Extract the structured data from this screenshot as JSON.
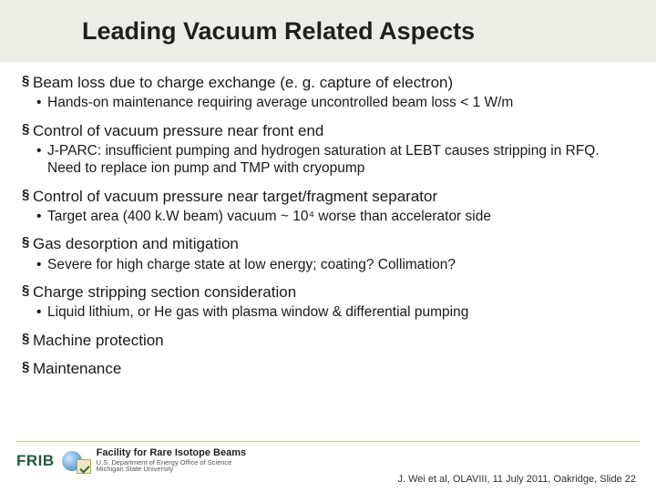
{
  "title": "Leading Vacuum Related Aspects",
  "sections": [
    {
      "head": "Beam loss due to charge exchange (e. g. capture of electron)",
      "subs": [
        "Hands-on maintenance requiring average uncontrolled beam loss < 1 W/m"
      ]
    },
    {
      "head": "Control of vacuum pressure near front end",
      "subs": [
        "J-PARC: insufficient pumping and hydrogen saturation at LEBT causes stripping in RFQ. Need to replace ion pump and TMP with cryopump"
      ]
    },
    {
      "head": "Control of vacuum pressure near target/fragment separator",
      "subs": [
        "Target area (400 k.W beam) vacuum ~ 10⁴ worse than accelerator side"
      ]
    },
    {
      "head": "Gas desorption and mitigation",
      "subs": [
        "Severe for high charge state at low energy; coating? Collimation?"
      ]
    },
    {
      "head": "Charge stripping section consideration",
      "subs": [
        "Liquid lithium, or He gas with plasma window & differential pumping"
      ]
    },
    {
      "head": "Machine protection",
      "subs": []
    },
    {
      "head": "Maintenance",
      "subs": []
    }
  ],
  "footer": {
    "logo_text": "FRIB",
    "facility_line1": "Facility for Rare Isotope Beams",
    "facility_line2a": "U.S. Department of Energy Office of Science",
    "facility_line2b": "Michigan State University",
    "citation": "J. Wei et al, OLAVIII, 11 July 2011, Oakridge, Slide 22"
  },
  "colors": {
    "header_bg": "#eceee5",
    "accent_line": "#b7ca86",
    "logo_green": "#245a34"
  }
}
